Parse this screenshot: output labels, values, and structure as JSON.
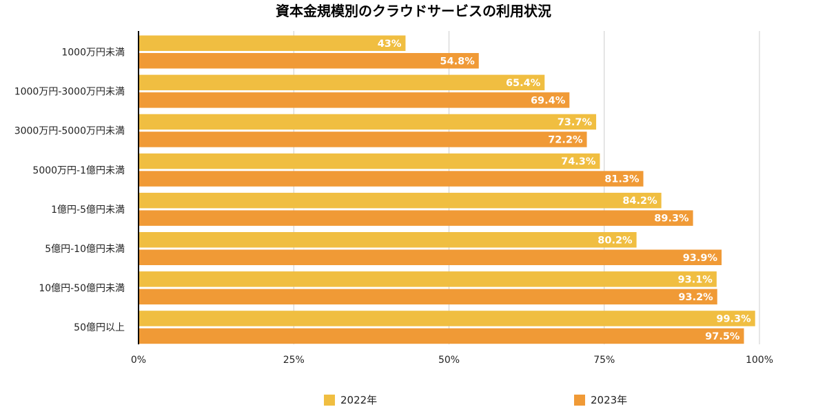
{
  "chart_data": {
    "type": "bar",
    "orientation": "horizontal",
    "title": "資本金規模別のクラウドサービスの利用状況",
    "categories": [
      "1000万円未満",
      "1000万円-3000万円未満",
      "3000万円-5000万円未満",
      "5000万円-1億円未満",
      "1億円-5億円未満",
      "5億円-10億円未満",
      "10億円-50億円未満",
      "50億円以上"
    ],
    "series": [
      {
        "name": "2022年",
        "color": "#F0BE41",
        "values": [
          43,
          65.4,
          73.7,
          74.3,
          84.2,
          80.2,
          93.1,
          99.3
        ],
        "labels": [
          "43%",
          "65.4%",
          "73.7%",
          "74.3%",
          "84.2%",
          "80.2%",
          "93.1%",
          "99.3%"
        ]
      },
      {
        "name": "2023年",
        "color": "#F09A36",
        "values": [
          54.8,
          69.4,
          72.2,
          81.3,
          89.3,
          93.9,
          93.2,
          97.5
        ],
        "labels": [
          "54.8%",
          "69.4%",
          "72.2%",
          "81.3%",
          "89.3%",
          "93.9%",
          "93.2%",
          "97.5%"
        ]
      }
    ],
    "xlim": [
      0,
      100
    ],
    "xticks": [
      0,
      25,
      50,
      75,
      100
    ],
    "xtick_labels": [
      "0%",
      "25%",
      "50%",
      "75%",
      "100%"
    ],
    "grid": true,
    "legend_position": "bottom"
  }
}
